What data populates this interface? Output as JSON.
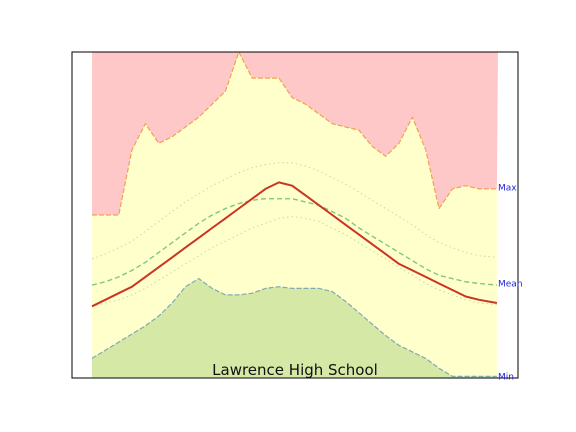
{
  "chart_data": {
    "type": "area",
    "title": "Lawrence High School",
    "xlabel": "",
    "ylabel": "",
    "xlim": [
      0,
      365
    ],
    "ylim": [
      0,
      100
    ],
    "grid": false,
    "legend": "none",
    "right_labels": [
      {
        "text": "Max",
        "y": 58.5
      },
      {
        "text": "Mean",
        "y": 29
      },
      {
        "text": "Min",
        "y": 0.5
      }
    ],
    "colors": {
      "max_fill": "#ffc8c8",
      "mid_fill": "#ffffcc",
      "min_fill": "#d6e8a6",
      "outer_line": "#f5a050",
      "dotted_line": "#c8d8a0",
      "dashed_line": "#80c880",
      "min_line": "#80aab0",
      "mean_line": "#cc3322",
      "right_label": "#1f1fd6"
    },
    "x": [
      0,
      12,
      24,
      36,
      48,
      60,
      72,
      84,
      96,
      108,
      120,
      132,
      144,
      156,
      168,
      180,
      192,
      204,
      216,
      228,
      240,
      252,
      264,
      276,
      288,
      300,
      312,
      324,
      336,
      348,
      364
    ],
    "series": [
      {
        "values": [
          50,
          50,
          50,
          70,
          78,
          72,
          74,
          77,
          80,
          84,
          88,
          100,
          92,
          92,
          92,
          86,
          84,
          81,
          78,
          77,
          76,
          71,
          68,
          72,
          80,
          70,
          52,
          58,
          59,
          58,
          58
        ]
      },
      {
        "values": [
          36.5,
          38,
          40,
          42,
          45,
          48,
          51,
          54,
          56.5,
          59,
          61,
          63,
          64.5,
          65.5,
          66,
          66,
          65,
          63.5,
          61.5,
          59.5,
          57,
          54.5,
          52,
          49.5,
          47,
          44,
          41.5,
          40,
          38.5,
          37.5,
          37
        ]
      },
      {
        "values": [
          28.5,
          29.5,
          31,
          33,
          35.5,
          38.5,
          41.5,
          44.5,
          47.5,
          50,
          52,
          53.5,
          54.5,
          55,
          55,
          55,
          54,
          53,
          51,
          49,
          46,
          43.5,
          41,
          38.5,
          36,
          33.5,
          31.5,
          30.5,
          29.5,
          29,
          28.5
        ]
      },
      {
        "values": [
          22,
          23,
          24,
          25.5,
          27.5,
          30,
          32.5,
          35,
          37.5,
          40,
          42,
          44,
          46,
          47.5,
          49,
          49.5,
          49,
          48,
          46,
          44,
          41.5,
          39,
          36.5,
          34,
          31.5,
          29,
          27,
          25.5,
          24,
          23,
          22.5
        ]
      },
      {
        "values": [
          6,
          8.5,
          11,
          13.5,
          16,
          19,
          23,
          28,
          30.5,
          27.5,
          25.5,
          25.5,
          26,
          27.5,
          28,
          27.5,
          27.5,
          27.5,
          26.5,
          23.5,
          20,
          16.5,
          13,
          10,
          8,
          6,
          3,
          0.5,
          0.5,
          0.5,
          0.5
        ]
      },
      {
        "values": [
          22,
          24,
          26,
          28,
          31,
          34,
          37,
          40,
          43,
          46,
          49,
          52,
          55,
          58,
          60,
          59,
          56,
          53,
          50,
          47,
          44,
          41,
          38,
          35,
          33,
          31,
          29,
          27,
          25,
          24,
          23
        ]
      }
    ]
  }
}
